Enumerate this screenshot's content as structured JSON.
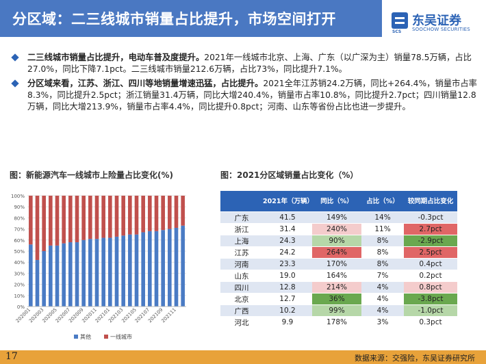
{
  "header": {
    "title": "分区域：二三线城市销量占比提升，市场空间打开",
    "logo_cn": "东吴证券",
    "logo_en": "SOOCHOW SECURITIES",
    "logo_abbr": "SCS"
  },
  "bullets": [
    {
      "bold": "二三线城市销量占比提升，电动车普及度提升。",
      "text": "2021年一线城市北京、上海、广东（以广深为主）销量78.5万辆，占比27.0%，同比下降7.1pct。二三线城市销量212.6万辆，占比73%，同比提升7.1%。"
    },
    {
      "bold": "分区域来看，江苏、浙江、四川等地销量增速迅猛，占比提升。",
      "text": "2021全年江苏销24.2万辆，同比+264.4%，销量市占率8.3%，同比提升2.5pct；浙江销量31.4万辆，同比大增240.4%，销量市占率10.8%，同比提升2.7pct；四川销量12.8万辆，同比大增213.9%，销量市占率4.4%，同比提升0.8pct；河南、山东等省份占比也进一步提升。"
    }
  ],
  "left_figure_title": "图：新能源汽车一线城市上险量占比变化(%)",
  "right_figure_title": "图：2021分区域销量占比变化（%）",
  "colors": {
    "other": "#4a7bc4",
    "tier1": "#c0504d",
    "header_blue": "#4a78c2",
    "table_header": "#2c63b5",
    "red_cell": "#e06666",
    "pink_cell": "#f4cccc",
    "green_cell": "#6aa84f",
    "lightgreen_cell": "#b6d7a8",
    "footer": "#e8a23a"
  },
  "chart_data": {
    "type": "bar",
    "stacked": true,
    "normalized": true,
    "categories": [
      "202001",
      "202002",
      "202003",
      "202004",
      "202005",
      "202006",
      "202007",
      "202008",
      "202009",
      "202010",
      "202011",
      "202012",
      "202101",
      "202102",
      "202103",
      "202104",
      "202105",
      "202106",
      "202107",
      "202108",
      "202109",
      "202110",
      "202111",
      "202112"
    ],
    "x_tick_labels": [
      "202001",
      "",
      "202003",
      "",
      "202005",
      "",
      "202007",
      "",
      "202009",
      "",
      "202011",
      "",
      "202101",
      "",
      "202103",
      "",
      "202105",
      "",
      "202107",
      "",
      "202109",
      "",
      "202111",
      ""
    ],
    "series": [
      {
        "name": "其他",
        "values": [
          56,
          42,
          50,
          55,
          55,
          57,
          58,
          58,
          60,
          61,
          61,
          62,
          62,
          63,
          64,
          65,
          65,
          67,
          68,
          68,
          69,
          70,
          71,
          73
        ]
      },
      {
        "name": "一线城市",
        "values": [
          44,
          58,
          50,
          45,
          45,
          43,
          42,
          42,
          40,
          39,
          39,
          38,
          38,
          37,
          36,
          35,
          35,
          33,
          32,
          32,
          31,
          30,
          29,
          27
        ]
      }
    ],
    "y_ticks": [
      "0%",
      "10%",
      "20%",
      "30%",
      "40%",
      "50%",
      "60%",
      "70%",
      "80%",
      "90%",
      "100%"
    ],
    "ylim": [
      0,
      100
    ],
    "legend_position": "bottom"
  },
  "table": {
    "headers": [
      "",
      "2021年（万辆）",
      "同比（%）",
      "占比（%）",
      "较同期占比变化"
    ],
    "rows": [
      {
        "region": "广东",
        "sales": "41.5",
        "yoy": "149%",
        "share": "14%",
        "change": "-0.3pct",
        "yoy_style": "none",
        "change_style": "none"
      },
      {
        "region": "浙江",
        "sales": "31.4",
        "yoy": "240%",
        "share": "11%",
        "change": "2.7pct",
        "yoy_style": "pink",
        "change_style": "red"
      },
      {
        "region": "上海",
        "sales": "24.3",
        "yoy": "90%",
        "share": "8%",
        "change": "-2.9pct",
        "yoy_style": "lightgreen",
        "change_style": "green"
      },
      {
        "region": "江苏",
        "sales": "24.2",
        "yoy": "264%",
        "share": "8%",
        "change": "2.5pct",
        "yoy_style": "red",
        "change_style": "red"
      },
      {
        "region": "河南",
        "sales": "23.3",
        "yoy": "170%",
        "share": "8%",
        "change": "0.4pct",
        "yoy_style": "none",
        "change_style": "none"
      },
      {
        "region": "山东",
        "sales": "19.0",
        "yoy": "164%",
        "share": "7%",
        "change": "0.2pct",
        "yoy_style": "none",
        "change_style": "none"
      },
      {
        "region": "四川",
        "sales": "12.8",
        "yoy": "214%",
        "share": "4%",
        "change": "0.8pct",
        "yoy_style": "pink",
        "change_style": "pink"
      },
      {
        "region": "北京",
        "sales": "12.7",
        "yoy": "36%",
        "share": "4%",
        "change": "-3.8pct",
        "yoy_style": "green",
        "change_style": "green"
      },
      {
        "region": "广西",
        "sales": "10.2",
        "yoy": "99%",
        "share": "4%",
        "change": "-1.0pct",
        "yoy_style": "lightgreen",
        "change_style": "lightgreen"
      },
      {
        "region": "河北",
        "sales": "9.9",
        "yoy": "178%",
        "share": "3%",
        "change": "0.3pct",
        "yoy_style": "none",
        "change_style": "none"
      }
    ]
  },
  "footer": {
    "page_number": "17",
    "source": "数据来源：交强险，东吴证券研究所"
  }
}
